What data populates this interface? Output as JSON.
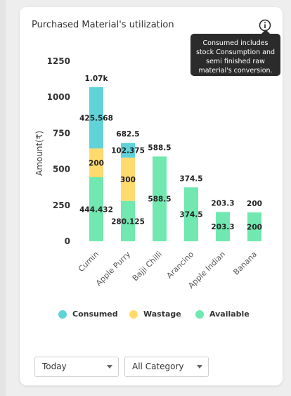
{
  "card": {
    "title": "Purchased Material's utilization",
    "info_tooltip": "Consumed includes stock Consumption and semi finished raw material's conversion."
  },
  "filters": {
    "period": "Today",
    "category": "All Category"
  },
  "colors": {
    "consumed": "#5fd3d8",
    "wastage": "#ffdb6e",
    "available": "#70e8b0"
  },
  "chart_data": {
    "type": "bar",
    "stacked": true,
    "ylabel": "Amount(₹)",
    "ylim": [
      0,
      1250
    ],
    "yticks": [
      0,
      250,
      500,
      750,
      1000,
      1250
    ],
    "ytick_labels": [
      "0",
      "250",
      "500",
      "750",
      "1000",
      "1250"
    ],
    "categories": [
      "Cumin",
      "Apple Purry",
      "Bajji Chilli",
      "Arancino",
      "Apple Indian",
      "Banana"
    ],
    "series": [
      {
        "name": "Available",
        "key": "available",
        "values": [
          444.432,
          280.125,
          588.5,
          374.5,
          203.3,
          200
        ],
        "labels": [
          "444.432",
          "280.125",
          "588.5",
          "374.5",
          "203.3",
          "200"
        ]
      },
      {
        "name": "Wastage",
        "key": "wastage",
        "values": [
          200,
          300,
          0,
          0,
          0,
          0
        ],
        "labels": [
          "200",
          "300",
          "",
          "",
          "",
          ""
        ]
      },
      {
        "name": "Consumed",
        "key": "consumed",
        "values": [
          425.568,
          102.375,
          0,
          0,
          0,
          0
        ],
        "labels": [
          "425.568",
          "102.375",
          "",
          "",
          "",
          ""
        ]
      }
    ],
    "totals": [
      1070,
      682.5,
      588.5,
      374.5,
      203.3,
      200
    ],
    "total_labels": [
      "1.07k",
      "682.5",
      "588.5",
      "374.5",
      "203.3",
      "200"
    ],
    "legend": [
      "Consumed",
      "Wastage",
      "Available"
    ],
    "legend_position": "bottom",
    "grid": false
  }
}
